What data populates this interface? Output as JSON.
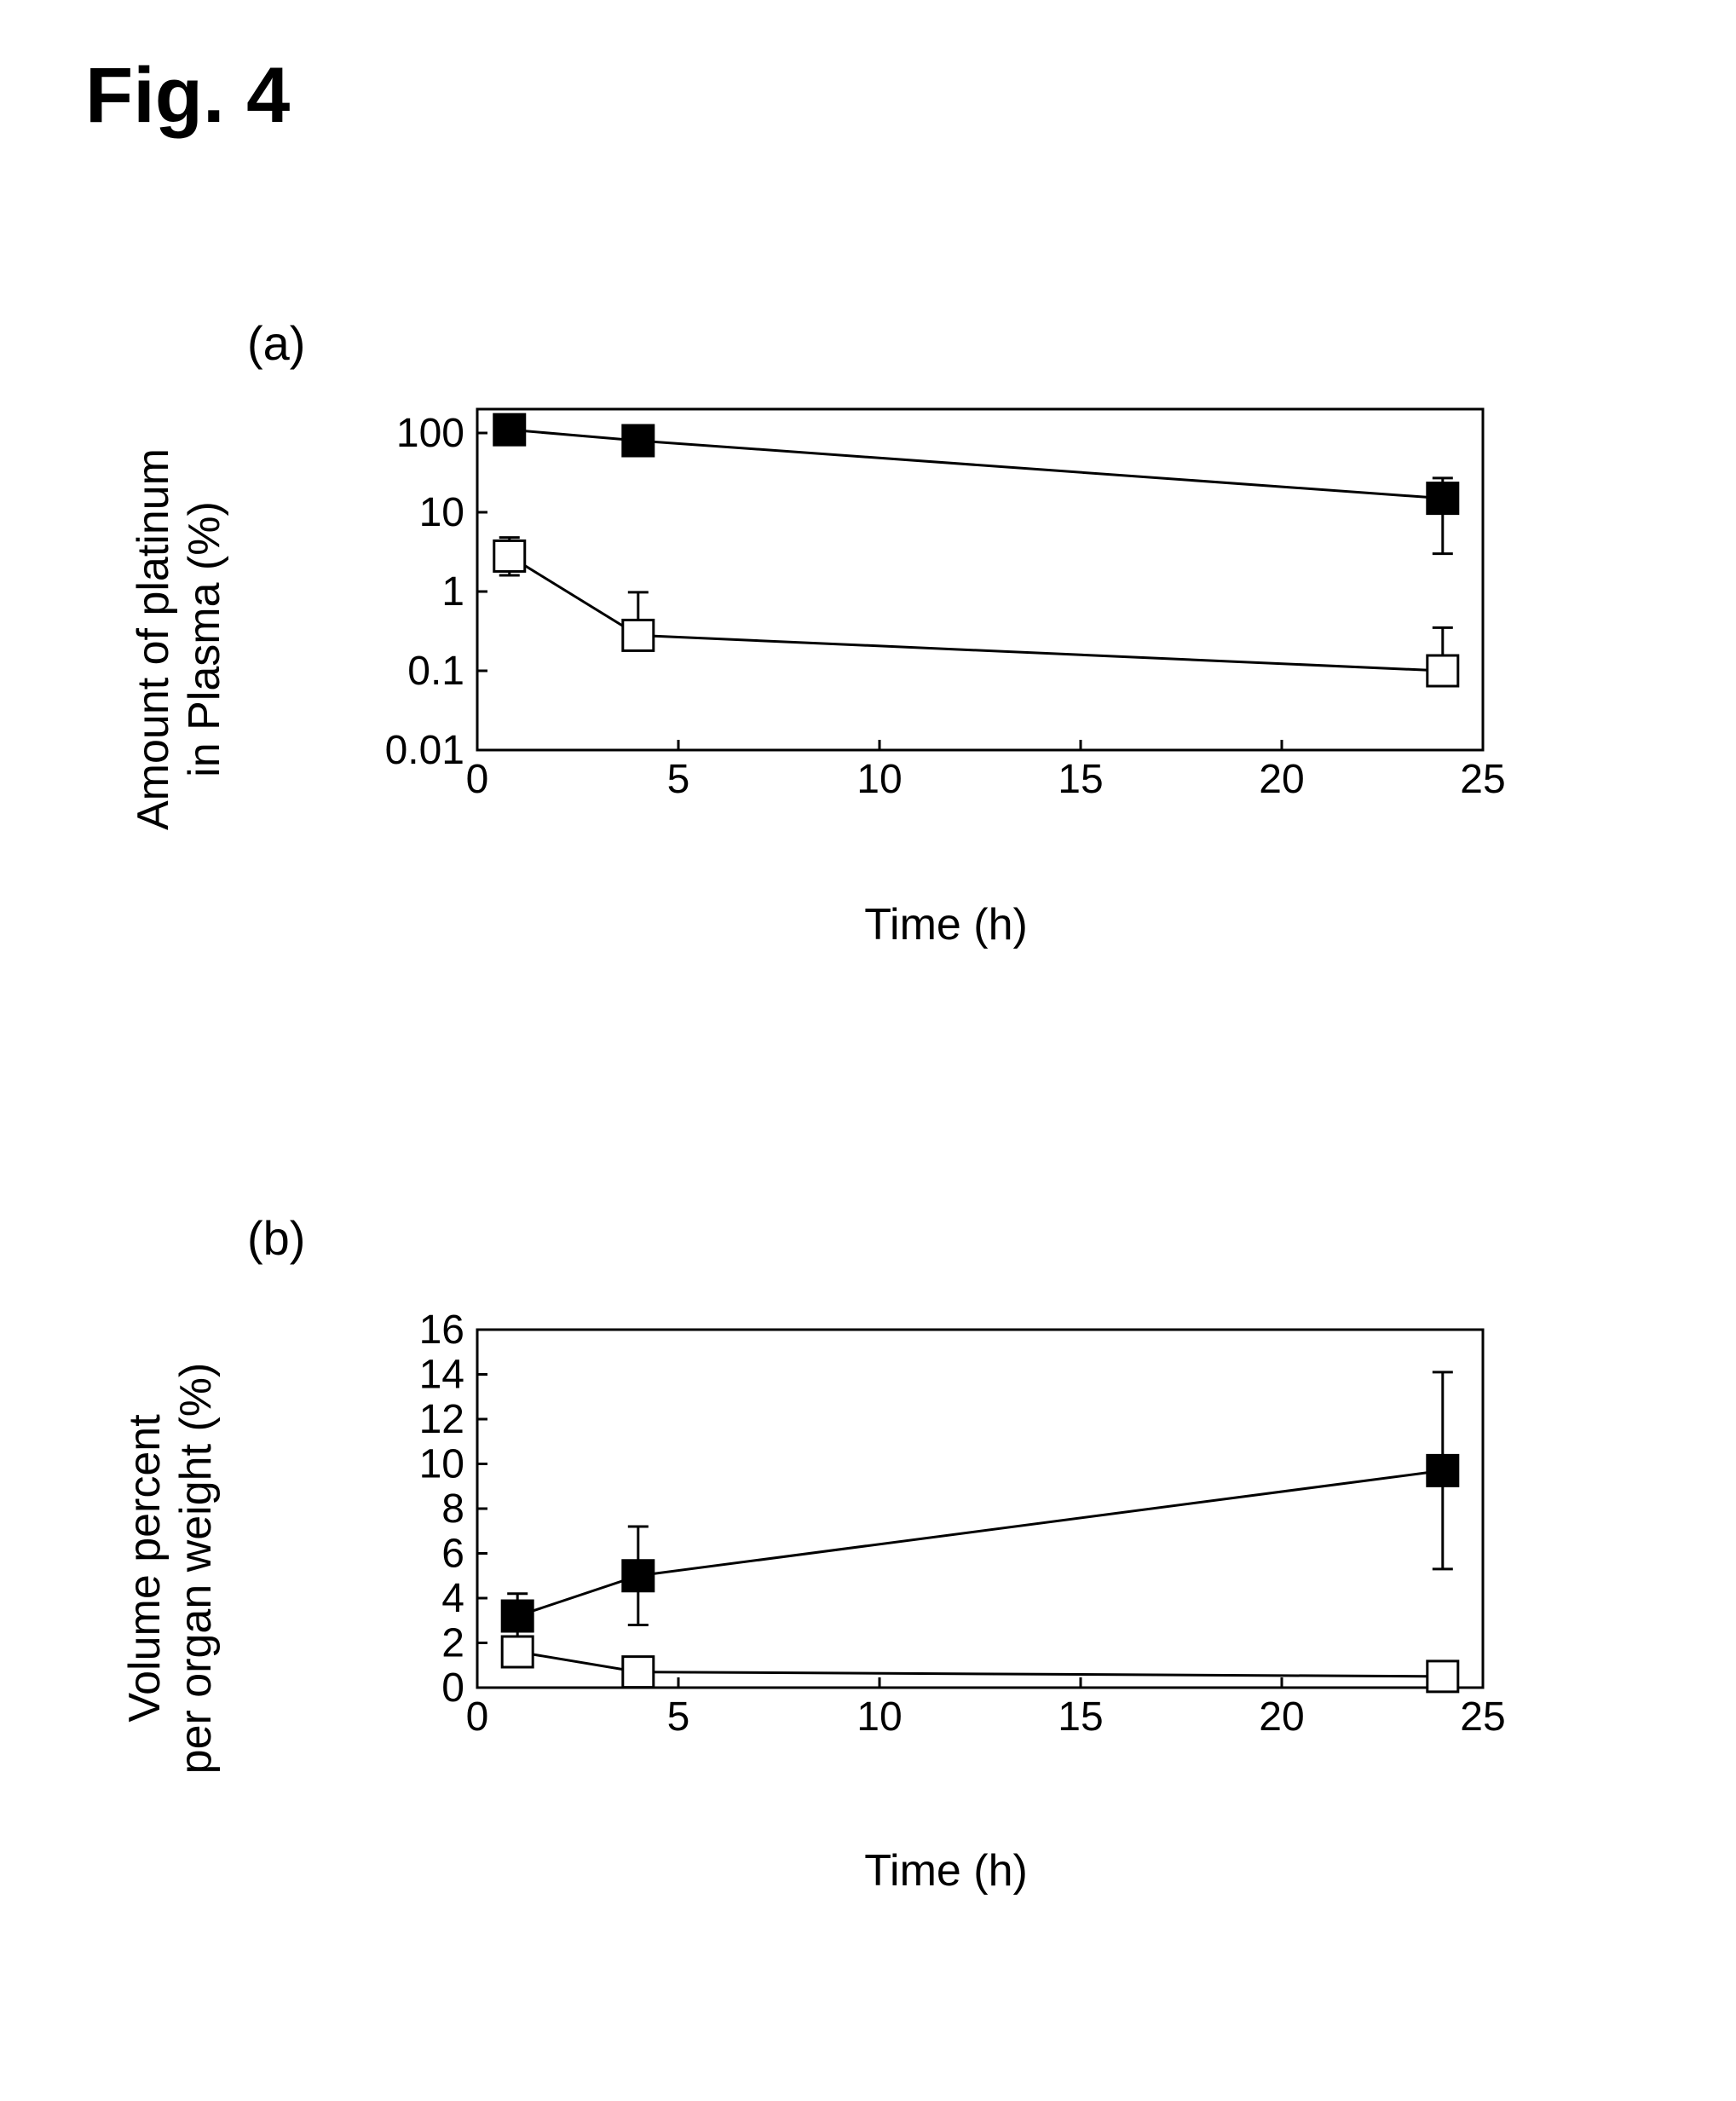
{
  "figure_label": "Fig. 4",
  "panel_a": {
    "label": "(a)",
    "type": "line",
    "xlabel": "Time (h)",
    "ylabel_line1": "Amount of platinum",
    "ylabel_line2": "in Plasma (%)",
    "xlim": [
      0,
      25
    ],
    "ylim": [
      0.01,
      200
    ],
    "yscale": "log",
    "xticks": [
      0,
      5,
      10,
      15,
      20,
      25
    ],
    "yticks": [
      0.01,
      0.1,
      1,
      10,
      100
    ],
    "ytick_labels": [
      "0.01",
      "0.1",
      "1",
      "10",
      "100"
    ],
    "series1": {
      "marker": "filled-square",
      "color": "#000000",
      "x": [
        0.8,
        4,
        24
      ],
      "y": [
        110,
        80,
        15
      ],
      "err": [
        20,
        20,
        12
      ]
    },
    "series2": {
      "marker": "open-square",
      "color": "#000000",
      "x": [
        0.8,
        4,
        24
      ],
      "y": [
        2.8,
        0.28,
        0.1
      ],
      "err_up": [
        2.0,
        0.7,
        0.25
      ],
      "err_down": [
        1.2,
        0,
        0
      ]
    },
    "plot_bg": "#ffffff",
    "axis_color": "#000000",
    "tick_fontsize": 48,
    "label_fontsize": 52,
    "marker_size": 18,
    "line_width": 3
  },
  "panel_b": {
    "label": "(b)",
    "type": "line",
    "xlabel": "Time (h)",
    "ylabel_line1": "Volume percent",
    "ylabel_line2": "per organ weight (%)",
    "xlim": [
      0,
      25
    ],
    "ylim": [
      0,
      16
    ],
    "yscale": "linear",
    "xticks": [
      0,
      5,
      10,
      15,
      20,
      25
    ],
    "yticks": [
      0,
      2,
      4,
      6,
      8,
      10,
      12,
      14,
      16
    ],
    "series1": {
      "marker": "filled-square",
      "color": "#000000",
      "x": [
        1,
        4,
        24
      ],
      "y": [
        3.2,
        5.0,
        9.7
      ],
      "err": [
        1.0,
        2.2,
        4.4
      ]
    },
    "series2": {
      "marker": "open-square",
      "color": "#000000",
      "x": [
        1,
        4,
        24
      ],
      "y": [
        1.6,
        0.7,
        0.5
      ],
      "err": [
        0.4,
        0.2,
        0.2
      ]
    },
    "plot_bg": "#ffffff",
    "axis_color": "#000000",
    "tick_fontsize": 48,
    "label_fontsize": 52,
    "marker_size": 18,
    "line_width": 3
  }
}
